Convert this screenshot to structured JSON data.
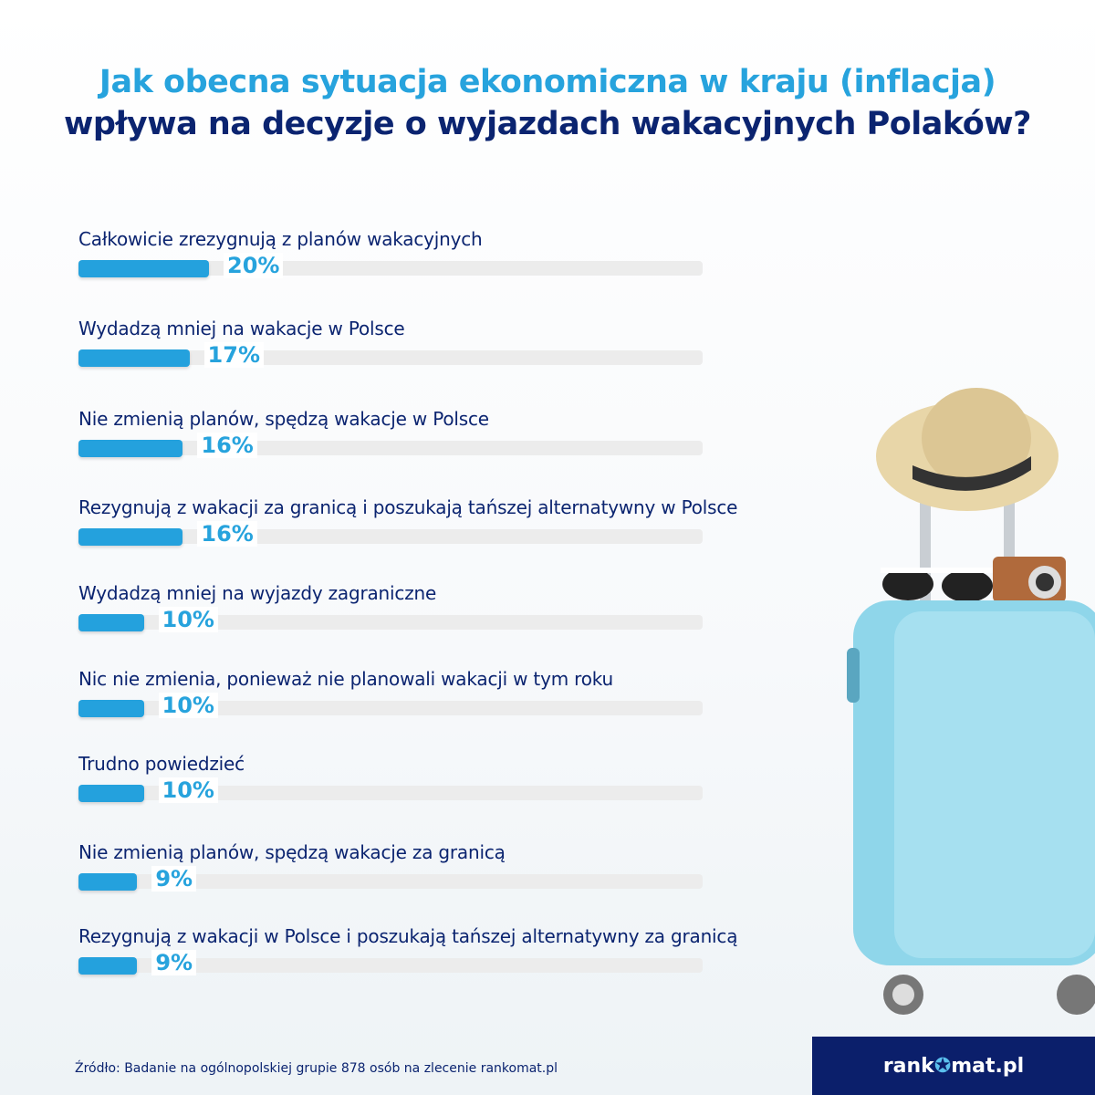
{
  "title_line1": "Jak obecna sytuacja ekonomiczna w kraju (inflacja)",
  "title_line2": "wpływa na decyzje o wyjazdach wakacyjnych Polaków?",
  "source": "Źródło: Badanie na ogólnopolskiej grupie 878 osób na zlecenie rankomat.pl",
  "logo": {
    "before": "rank",
    "after": "mat.pl"
  },
  "colors": {
    "bar": "#24a1dd",
    "track": "#ececec",
    "title_accent": "#27a3dd",
    "navy": "#0b2470"
  },
  "chart_data": {
    "type": "bar",
    "orientation": "horizontal",
    "categories": [
      "Całkowicie zrezygnują z planów wakacyjnych",
      "Wydadzą mniej na wakacje w Polsce",
      "Nie zmienią planów, spędzą wakacje w Polsce",
      "Rezygnują z wakacji za granicą i poszukają tańszej alternatywny w Polsce",
      "Wydadzą mniej na wyjazdy zagraniczne",
      "Nic nie zmienia, ponieważ nie planowali wakacji w tym roku",
      "Trudno powiedzieć",
      "Nie zmienią planów, spędzą wakacje za granicą",
      "Rezygnują z wakacji w Polsce i poszukają tańszej alternatywny za granicą"
    ],
    "values": [
      20,
      17,
      16,
      16,
      10,
      10,
      10,
      9,
      9
    ],
    "labels": [
      "20%",
      "17%",
      "16%",
      "16%",
      "10%",
      "10%",
      "10%",
      "9%",
      "9%"
    ],
    "unit": "%"
  }
}
